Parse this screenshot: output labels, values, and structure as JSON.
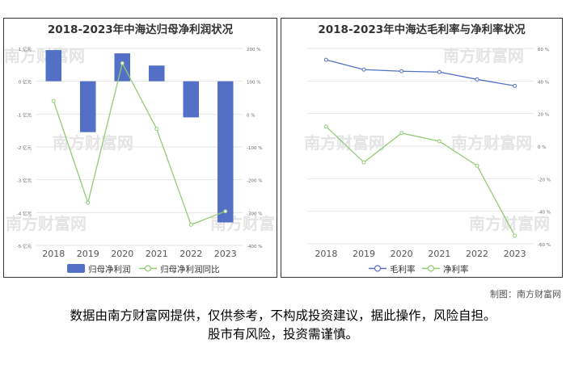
{
  "watermark_text": "南方财富网",
  "credit": "制图：南方财富网",
  "disclaimer": {
    "line1": "数据由南方财富网提供，仅供参考，不构成投资建议，据此操作，风险自担。",
    "line2": "股市有风险，投资需谨慎。"
  },
  "chart_data": [
    {
      "type": "bar",
      "title": "2018-2023年中海达归母净利润状况",
      "categories": [
        "2018",
        "2019",
        "2020",
        "2021",
        "2022",
        "2023"
      ],
      "series": [
        {
          "name": "归母净利润",
          "kind": "bar",
          "axis": "left",
          "color": "#5470c6",
          "values": [
            0.95,
            -1.55,
            0.85,
            0.48,
            -1.1,
            -4.3
          ]
        },
        {
          "name": "归母净利润同比",
          "kind": "line",
          "axis": "right",
          "color": "#91cc75",
          "values": [
            40,
            -270,
            155,
            -45,
            -337,
            -296
          ]
        }
      ],
      "y_left": {
        "min": -5,
        "max": 1,
        "ticks": [
          1,
          0,
          -1,
          -2,
          -3,
          -4,
          -5
        ],
        "tick_labels": [
          "1 亿元",
          "0 亿元",
          "-1 亿元",
          "-2 亿元",
          "-3 亿元",
          "-4 亿元",
          "-5 亿元"
        ]
      },
      "y_right": {
        "min": -400,
        "max": 200,
        "ticks": [
          200,
          100,
          0,
          -100,
          -200,
          -300,
          -400
        ],
        "tick_labels": [
          "200 %",
          "100 %",
          "0 %",
          "-100 %",
          "-200 %",
          "-300 %",
          "-400 %"
        ]
      },
      "legend": [
        "归母净利润",
        "归母净利润同比"
      ],
      "legend_position": "bottom"
    },
    {
      "type": "line",
      "title": "2018-2023年中海达毛利率与净利率状况",
      "categories": [
        "2018",
        "2019",
        "2020",
        "2021",
        "2022",
        "2023"
      ],
      "series": [
        {
          "name": "毛利率",
          "color": "#5470c6",
          "values": [
            53,
            47,
            46,
            45.5,
            41,
            37
          ]
        },
        {
          "name": "净利率",
          "color": "#91cc75",
          "values": [
            12,
            -10,
            8,
            3,
            -12,
            -55
          ]
        }
      ],
      "y": {
        "min": -60,
        "max": 60,
        "ticks": [
          60,
          40,
          20,
          0,
          -20,
          -40,
          -60
        ],
        "tick_labels": [
          "60 %",
          "40 %",
          "20 %",
          "0 %",
          "-20 %",
          "-40 %",
          "-60 %"
        ]
      },
      "legend": [
        "毛利率",
        "净利率"
      ],
      "legend_position": "bottom"
    }
  ]
}
